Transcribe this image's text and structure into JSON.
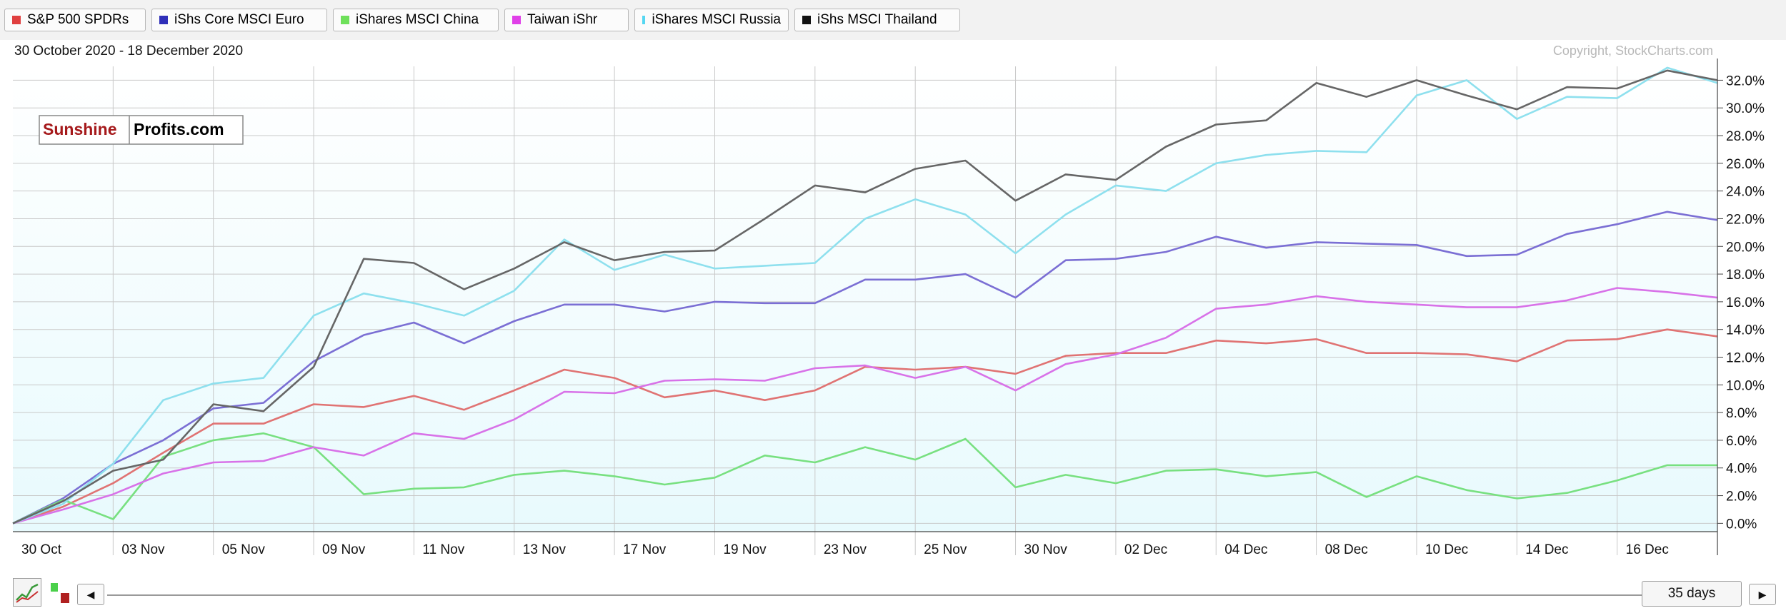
{
  "legend": [
    {
      "label": "S&P 500 SPDRs",
      "color": "#e04040"
    },
    {
      "label": "iShs Core MSCI Euro",
      "color": "#2e2eb8"
    },
    {
      "label": "iShares MSCI China",
      "color": "#6ee05a"
    },
    {
      "label": "Taiwan iShr",
      "color": "#e040e8"
    },
    {
      "label": "iShares MSCI Russia",
      "color": "#55d7f2"
    },
    {
      "label": "iShs MSCI Thailand",
      "color": "#111111"
    }
  ],
  "date_range": "30 October 2020 - 18 December 2020",
  "copyright": "Copyright, StockCharts.com",
  "logo": {
    "part1": "Sunshine",
    "part2": "Profits.com"
  },
  "controls": {
    "prev_arrow": "◀",
    "next_arrow": "▶",
    "period": "35 days",
    "icons": [
      "line-chart-icon",
      "bar-chart-icon"
    ]
  },
  "chart_data": {
    "type": "line",
    "x": [
      "30 Oct",
      "02 Nov",
      "03 Nov",
      "04 Nov",
      "05 Nov",
      "06 Nov",
      "09 Nov",
      "10 Nov",
      "11 Nov",
      "12 Nov",
      "13 Nov",
      "16 Nov",
      "17 Nov",
      "18 Nov",
      "19 Nov",
      "20 Nov",
      "23 Nov",
      "24 Nov",
      "25 Nov",
      "27 Nov",
      "30 Nov",
      "01 Dec",
      "02 Dec",
      "03 Dec",
      "04 Dec",
      "07 Dec",
      "08 Dec",
      "09 Dec",
      "10 Dec",
      "11 Dec",
      "14 Dec",
      "15 Dec",
      "16 Dec",
      "17 Dec",
      "18 Dec"
    ],
    "x_tick_labels": [
      "30 Oct",
      "03 Nov",
      "05 Nov",
      "09 Nov",
      "11 Nov",
      "13 Nov",
      "17 Nov",
      "19 Nov",
      "23 Nov",
      "25 Nov",
      "30 Nov",
      "02 Dec",
      "04 Dec",
      "08 Dec",
      "10 Dec",
      "14 Dec",
      "16 Dec"
    ],
    "y_ticks": [
      0,
      2,
      4,
      6,
      8,
      10,
      12,
      14,
      16,
      18,
      20,
      22,
      24,
      26,
      28,
      30,
      32
    ],
    "y_unit": "%",
    "ylim": [
      -0.6,
      33
    ],
    "grid": true,
    "series": [
      {
        "name": "S&P 500 SPDRs",
        "color": "#e07373",
        "values": [
          0,
          1.2,
          2.9,
          5.1,
          7.2,
          7.2,
          8.6,
          8.4,
          9.2,
          8.2,
          9.6,
          11.1,
          10.5,
          9.1,
          9.6,
          8.9,
          9.6,
          11.3,
          11.1,
          11.3,
          10.8,
          12.1,
          12.3,
          12.3,
          13.2,
          13.0,
          13.3,
          12.3,
          12.3,
          12.2,
          11.7,
          13.2,
          13.3,
          14.0,
          13.5
        ]
      },
      {
        "name": "iShs Core MSCI Euro",
        "color": "#7b6fd4",
        "values": [
          0,
          1.8,
          4.3,
          6.0,
          8.3,
          8.7,
          11.7,
          13.6,
          14.5,
          13.0,
          14.6,
          15.8,
          15.8,
          15.3,
          16.0,
          15.9,
          15.9,
          17.6,
          17.6,
          18.0,
          16.3,
          19.0,
          19.1,
          19.6,
          20.7,
          19.9,
          20.3,
          20.2,
          20.1,
          19.3,
          19.4,
          20.9,
          21.6,
          22.5,
          21.9
        ]
      },
      {
        "name": "iShares MSCI China",
        "color": "#78e080",
        "values": [
          0,
          1.7,
          0.3,
          4.8,
          6.0,
          6.5,
          5.5,
          2.1,
          2.5,
          2.6,
          3.5,
          3.8,
          3.4,
          2.8,
          3.3,
          4.9,
          4.4,
          5.5,
          4.6,
          6.1,
          2.6,
          3.5,
          2.9,
          3.8,
          3.9,
          3.4,
          3.7,
          1.9,
          3.4,
          2.4,
          1.8,
          2.2,
          3.1,
          4.2,
          4.2
        ]
      },
      {
        "name": "Taiwan iShr",
        "color": "#d872e8",
        "values": [
          0,
          1.0,
          2.1,
          3.6,
          4.4,
          4.5,
          5.5,
          4.9,
          6.5,
          6.1,
          7.5,
          9.5,
          9.4,
          10.3,
          10.4,
          10.3,
          11.2,
          11.4,
          10.5,
          11.3,
          9.6,
          11.5,
          12.2,
          13.4,
          15.5,
          15.8,
          16.4,
          16.0,
          15.8,
          15.6,
          15.6,
          16.1,
          17.0,
          16.7,
          16.3
        ]
      },
      {
        "name": "iShares MSCI Russia",
        "color": "#8ee0ee",
        "values": [
          0,
          1.4,
          4.3,
          8.9,
          10.1,
          10.5,
          15.0,
          16.6,
          15.9,
          15.0,
          16.8,
          20.5,
          18.3,
          19.4,
          18.4,
          18.6,
          18.8,
          22.0,
          23.4,
          22.3,
          19.5,
          22.3,
          24.4,
          24.0,
          26.0,
          26.6,
          26.9,
          26.8,
          30.9,
          32.0,
          29.2,
          30.8,
          30.7,
          32.9,
          31.8
        ]
      },
      {
        "name": "iShs MSCI Thailand",
        "color": "#666666",
        "values": [
          0,
          1.6,
          3.8,
          4.6,
          8.6,
          8.1,
          11.3,
          19.1,
          18.8,
          16.9,
          18.4,
          20.3,
          19.0,
          19.6,
          19.7,
          22.0,
          24.4,
          23.9,
          25.6,
          26.2,
          23.3,
          25.2,
          24.8,
          27.2,
          28.8,
          29.1,
          31.8,
          30.8,
          32.0,
          30.9,
          29.9,
          31.5,
          31.4,
          32.7,
          32.0
        ]
      }
    ]
  }
}
